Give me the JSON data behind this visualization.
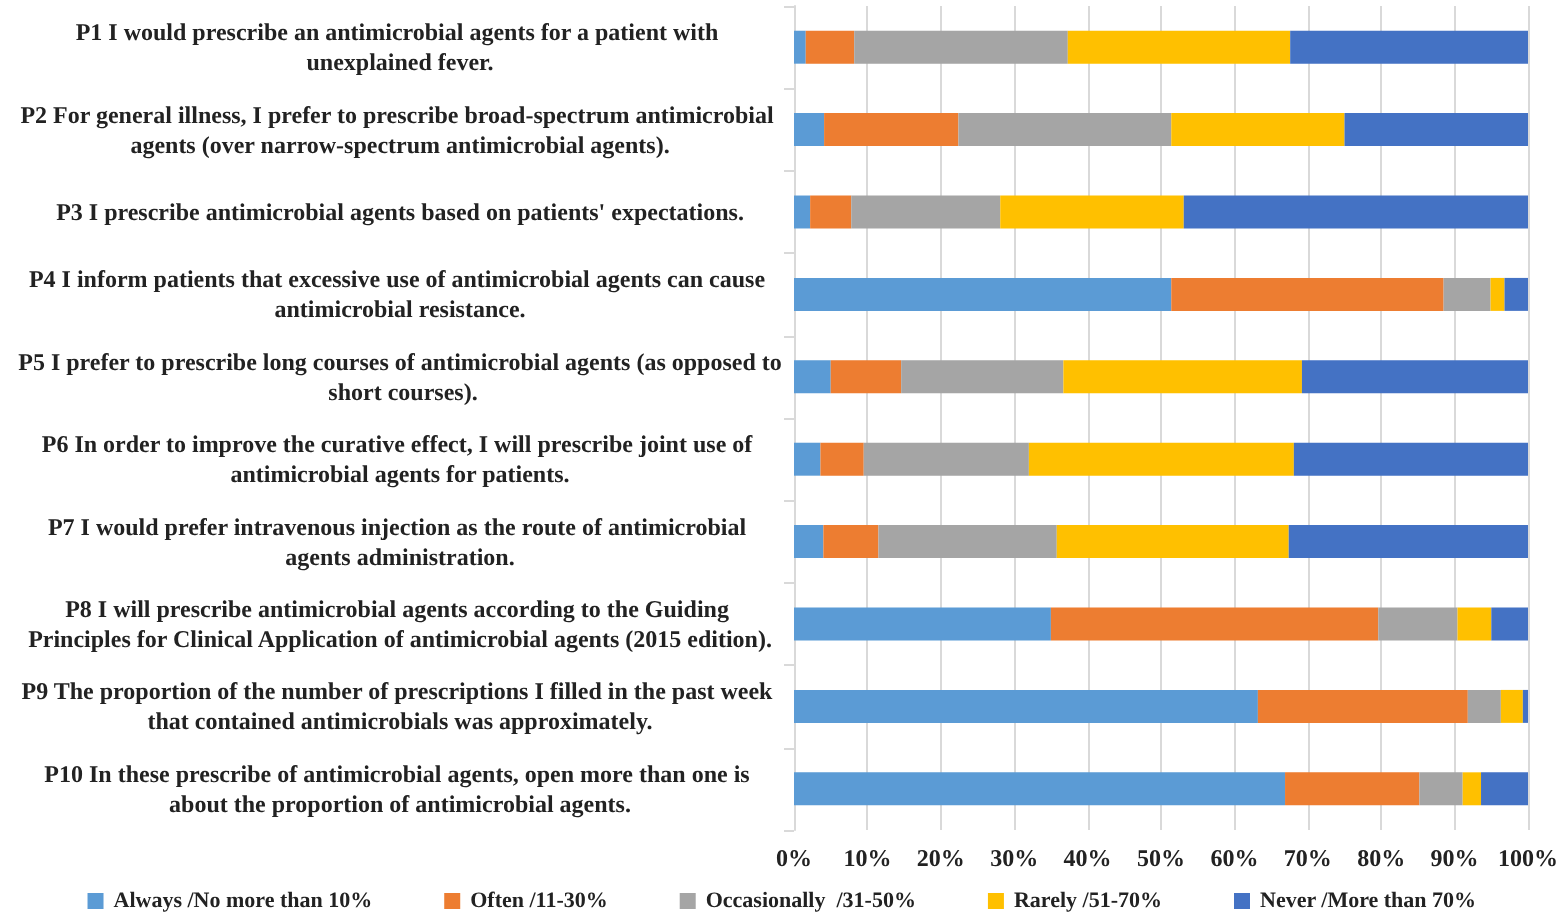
{
  "chart_data": {
    "type": "bar",
    "orientation": "horizontal",
    "stacked": true,
    "categories": [
      "P1 I would prescribe an antimicrobial agents for a patient with unexplained fever.",
      "P2 For general illness, I prefer to prescribe broad-spectrum antimicrobial agents (over narrow-spectrum antimicrobial agents).",
      "P3 I prescribe antimicrobial agents based on patients' expectations.",
      "P4 I inform patients that excessive use of antimicrobial agents can cause antimicrobial resistance.",
      "P5 I prefer to prescribe long courses of antimicrobial agents (as opposed to short courses).",
      "P6 In order to improve the curative effect, I will prescribe joint use of antimicrobial agents for patients.",
      "P7 I would prefer intravenous injection as the route of antimicrobial agents administration.",
      "P8 I will prescribe antimicrobial agents according to the Guiding Principles for Clinical Application of antimicrobial agents (2015 edition).",
      "P9 The proportion of the number of prescriptions I filled in the past week that contained antimicrobials was approximately.",
      "P10 In these prescribe of antimicrobial agents, open more than one is about the proportion of antimicrobial agents."
    ],
    "series": [
      {
        "name": "Always /No more than 10%",
        "color": "#5b9bd5",
        "values": [
          1.6,
          4.1,
          2.2,
          51.4,
          5.0,
          3.6,
          4.0,
          35.0,
          63.2,
          66.9
        ]
      },
      {
        "name": "Often /11-30%",
        "color": "#ed7d31",
        "values": [
          6.6,
          18.3,
          5.6,
          37.1,
          9.6,
          5.9,
          7.5,
          44.6,
          28.6,
          18.3
        ]
      },
      {
        "name": "Occasionally  /31-50%",
        "color": "#a5a5a5",
        "values": [
          29.1,
          29.0,
          20.3,
          6.4,
          22.1,
          22.5,
          24.3,
          10.8,
          4.5,
          5.9
        ]
      },
      {
        "name": "Rarely /51-70%",
        "color": "#ffc000",
        "values": [
          30.3,
          23.6,
          25.0,
          1.9,
          32.5,
          36.1,
          31.6,
          4.6,
          3.0,
          2.5
        ]
      },
      {
        "name": "Never /More than 70%",
        "color": "#4472c4",
        "values": [
          32.4,
          25.0,
          46.9,
          3.2,
          30.8,
          31.9,
          32.6,
          5.0,
          0.7,
          6.4
        ]
      }
    ],
    "xlim": [
      0,
      100
    ],
    "xticks": [
      {
        "value": 0,
        "label": "0%"
      },
      {
        "value": 10,
        "label": "10%"
      },
      {
        "value": 20,
        "label": "20%"
      },
      {
        "value": 30,
        "label": "30%"
      },
      {
        "value": 40,
        "label": "40%"
      },
      {
        "value": 50,
        "label": "50%"
      },
      {
        "value": 60,
        "label": "60%"
      },
      {
        "value": 70,
        "label": "70%"
      },
      {
        "value": 80,
        "label": "80%"
      },
      {
        "value": 90,
        "label": "90%"
      },
      {
        "value": 100,
        "label": "100%"
      }
    ],
    "grid": "x",
    "legend": "bottom"
  }
}
